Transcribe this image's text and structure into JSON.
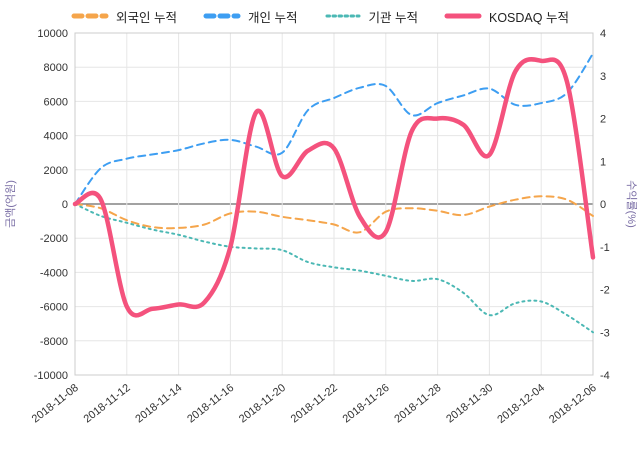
{
  "colors": {
    "grid": "#e6e6e6",
    "plot_border": "#cccccc",
    "zero_line": "#6b6b6b",
    "tick_text": "#333333",
    "axis_title": "#7a6ea5",
    "background": "#ffffff"
  },
  "chart_data": {
    "type": "line",
    "title": "",
    "x_labels_all": [
      "2018-11-08",
      "2018-11-09",
      "2018-11-12",
      "2018-11-13",
      "2018-11-14",
      "2018-11-15",
      "2018-11-16",
      "2018-11-19",
      "2018-11-20",
      "2018-11-21",
      "2018-11-22",
      "2018-11-23",
      "2018-11-26",
      "2018-11-27",
      "2018-11-28",
      "2018-11-29",
      "2018-11-30",
      "2018-12-03",
      "2018-12-04",
      "2018-12-05",
      "2018-12-06"
    ],
    "x_tick_labels": [
      "2018-11-08",
      "2018-11-12",
      "2018-11-14",
      "2018-11-16",
      "2018-11-20",
      "2018-11-22",
      "2018-11-26",
      "2018-11-28",
      "2018-11-30",
      "2018-12-04",
      "2018-12-06"
    ],
    "left_axis": {
      "label": "금액(억원)",
      "min": -10000,
      "max": 10000,
      "ticks": [
        10000,
        8000,
        6000,
        4000,
        2000,
        0,
        -2000,
        -4000,
        -6000,
        -8000,
        -10000
      ]
    },
    "right_axis": {
      "label": "수익률(%)",
      "min": -4,
      "max": 4,
      "ticks": [
        4,
        3,
        2,
        1,
        0,
        -1,
        -2,
        -3,
        -4
      ]
    },
    "legend_position": "top",
    "grid": true,
    "series": [
      {
        "id": "foreign",
        "name": "외국인 누적",
        "axis": "left",
        "line_style": "dashed",
        "color": "#f5a54b",
        "values": [
          0,
          -250,
          -950,
          -1350,
          -1400,
          -1200,
          -550,
          -450,
          -750,
          -950,
          -1200,
          -1650,
          -450,
          -250,
          -400,
          -650,
          -150,
          250,
          450,
          250,
          -700
        ]
      },
      {
        "id": "individual",
        "name": "개인 누적",
        "axis": "left",
        "line_style": "dashed",
        "color": "#3d9ef2",
        "values": [
          0,
          2100,
          2650,
          2900,
          3150,
          3550,
          3750,
          3350,
          3000,
          5500,
          6200,
          6800,
          6900,
          5200,
          5900,
          6350,
          6750,
          5800,
          5900,
          6500,
          8800
        ]
      },
      {
        "id": "institution",
        "name": "기관 누적",
        "axis": "left",
        "line_style": "dotted",
        "color": "#4bb8b4",
        "values": [
          0,
          -700,
          -1100,
          -1500,
          -1800,
          -2200,
          -2500,
          -2600,
          -2700,
          -3400,
          -3700,
          -3900,
          -4200,
          -4500,
          -4400,
          -5200,
          -6500,
          -5800,
          -5700,
          -6500,
          -7500
        ]
      },
      {
        "id": "kosdaq",
        "name": "KOSDAQ 누적",
        "axis": "right",
        "line_style": "solid",
        "color": "#f4527d",
        "values": [
          0,
          0.1,
          -2.4,
          -2.45,
          -2.35,
          -2.3,
          -1.0,
          2.15,
          0.65,
          1.25,
          1.3,
          -0.3,
          -0.65,
          1.7,
          2.0,
          1.85,
          1.15,
          3.1,
          3.35,
          2.85,
          -1.25
        ]
      }
    ]
  }
}
